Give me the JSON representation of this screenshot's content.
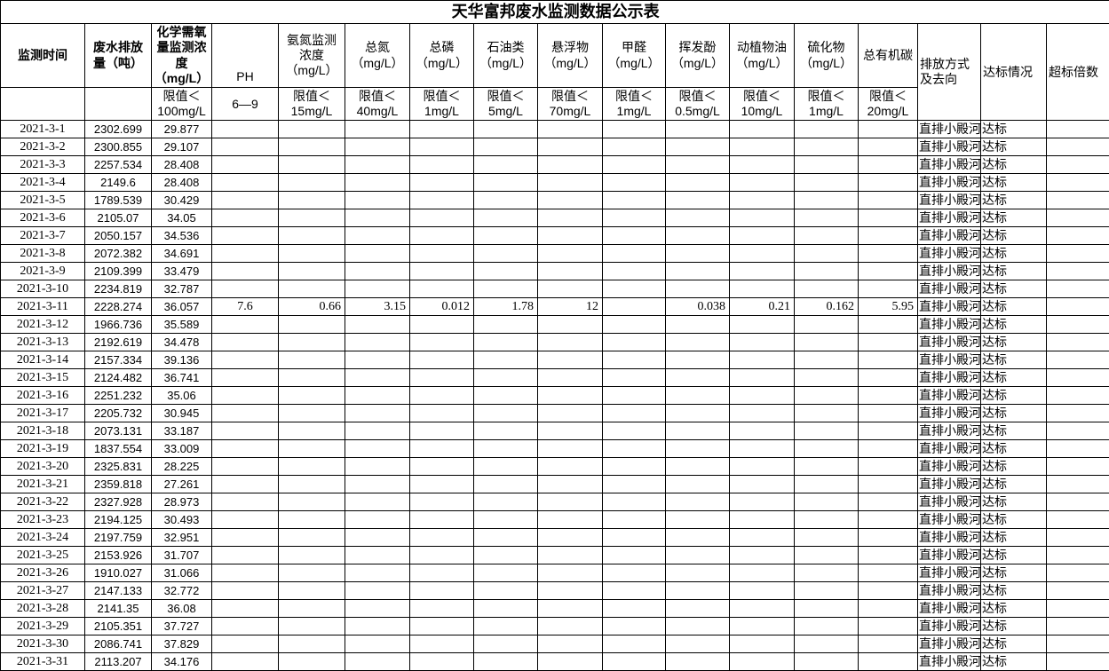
{
  "title": "天华富邦废水监测数据公示表",
  "table": {
    "columns": [
      {
        "label": "监测时间",
        "limit": "",
        "bold": true
      },
      {
        "label": "废水排放\n量（吨）",
        "limit": "",
        "bold": true
      },
      {
        "label": "化学需氧\n量监测浓\n度\n（mg/L）",
        "limit": "限值＜\n100mg/L",
        "bold": true
      },
      {
        "label": "PH",
        "limit": "6—9"
      },
      {
        "label": "氨氮监测\n浓度\n（mg/L）",
        "limit": "限值＜\n15mg/L"
      },
      {
        "label": "总氮\n（mg/L）",
        "limit": "限值＜\n40mg/L"
      },
      {
        "label": "总磷\n（mg/L）",
        "limit": "限值＜\n1mg/L"
      },
      {
        "label": "石油类\n（mg/L）",
        "limit": "限值＜\n5mg/L"
      },
      {
        "label": "悬浮物\n（mg/L）",
        "limit": "限值＜\n70mg/L"
      },
      {
        "label": "甲醛\n（mg/L）",
        "limit": "限值＜\n1mg/L"
      },
      {
        "label": "挥发酚\n（mg/L）",
        "limit": "限值＜\n0.5mg/L"
      },
      {
        "label": "动植物油\n（mg/L）",
        "limit": "限值＜\n10mg/L"
      },
      {
        "label": "硫化物\n（mg/L）",
        "limit": "限值＜\n1mg/L"
      },
      {
        "label": "总有机碳",
        "limit": "限值＜\n20mg/L"
      },
      {
        "label": "排放方式\n及去向",
        "merged": true
      },
      {
        "label": "达标情况",
        "merged": true
      },
      {
        "label": "超标倍数",
        "merged": true
      }
    ],
    "rows": [
      [
        "2021-3-1",
        "2302.699",
        "29.877",
        "",
        "",
        "",
        "",
        "",
        "",
        "",
        "",
        "",
        "",
        "",
        "直排小殿河",
        "达标",
        ""
      ],
      [
        "2021-3-2",
        "2300.855",
        "29.107",
        "",
        "",
        "",
        "",
        "",
        "",
        "",
        "",
        "",
        "",
        "",
        "直排小殿河",
        "达标",
        ""
      ],
      [
        "2021-3-3",
        "2257.534",
        "28.408",
        "",
        "",
        "",
        "",
        "",
        "",
        "",
        "",
        "",
        "",
        "",
        "直排小殿河",
        "达标",
        ""
      ],
      [
        "2021-3-4",
        "2149.6",
        "28.408",
        "",
        "",
        "",
        "",
        "",
        "",
        "",
        "",
        "",
        "",
        "",
        "直排小殿河",
        "达标",
        ""
      ],
      [
        "2021-3-5",
        "1789.539",
        "30.429",
        "",
        "",
        "",
        "",
        "",
        "",
        "",
        "",
        "",
        "",
        "",
        "直排小殿河",
        "达标",
        ""
      ],
      [
        "2021-3-6",
        "2105.07",
        "34.05",
        "",
        "",
        "",
        "",
        "",
        "",
        "",
        "",
        "",
        "",
        "",
        "直排小殿河",
        "达标",
        ""
      ],
      [
        "2021-3-7",
        "2050.157",
        "34.536",
        "",
        "",
        "",
        "",
        "",
        "",
        "",
        "",
        "",
        "",
        "",
        "直排小殿河",
        "达标",
        ""
      ],
      [
        "2021-3-8",
        "2072.382",
        "34.691",
        "",
        "",
        "",
        "",
        "",
        "",
        "",
        "",
        "",
        "",
        "",
        "直排小殿河",
        "达标",
        ""
      ],
      [
        "2021-3-9",
        "2109.399",
        "33.479",
        "",
        "",
        "",
        "",
        "",
        "",
        "",
        "",
        "",
        "",
        "",
        "直排小殿河",
        "达标",
        ""
      ],
      [
        "2021-3-10",
        "2234.819",
        "32.787",
        "",
        "",
        "",
        "",
        "",
        "",
        "",
        "",
        "",
        "",
        "",
        "直排小殿河",
        "达标",
        ""
      ],
      [
        "2021-3-11",
        "2228.274",
        "36.057",
        "7.6",
        "0.66",
        "3.15",
        "0.012",
        "1.78",
        "12",
        "",
        "0.038",
        "0.21",
        "0.162",
        "5.95",
        "直排小殿河",
        "达标",
        ""
      ],
      [
        "2021-3-12",
        "1966.736",
        "35.589",
        "",
        "",
        "",
        "",
        "",
        "",
        "",
        "",
        "",
        "",
        "",
        "直排小殿河",
        "达标",
        ""
      ],
      [
        "2021-3-13",
        "2192.619",
        "34.478",
        "",
        "",
        "",
        "",
        "",
        "",
        "",
        "",
        "",
        "",
        "",
        "直排小殿河",
        "达标",
        ""
      ],
      [
        "2021-3-14",
        "2157.334",
        "39.136",
        "",
        "",
        "",
        "",
        "",
        "",
        "",
        "",
        "",
        "",
        "",
        "直排小殿河",
        "达标",
        ""
      ],
      [
        "2021-3-15",
        "2124.482",
        "36.741",
        "",
        "",
        "",
        "",
        "",
        "",
        "",
        "",
        "",
        "",
        "",
        "直排小殿河",
        "达标",
        ""
      ],
      [
        "2021-3-16",
        "2251.232",
        "35.06",
        "",
        "",
        "",
        "",
        "",
        "",
        "",
        "",
        "",
        "",
        "",
        "直排小殿河",
        "达标",
        ""
      ],
      [
        "2021-3-17",
        "2205.732",
        "30.945",
        "",
        "",
        "",
        "",
        "",
        "",
        "",
        "",
        "",
        "",
        "",
        "直排小殿河",
        "达标",
        ""
      ],
      [
        "2021-3-18",
        "2073.131",
        "33.187",
        "",
        "",
        "",
        "",
        "",
        "",
        "",
        "",
        "",
        "",
        "",
        "直排小殿河",
        "达标",
        ""
      ],
      [
        "2021-3-19",
        "1837.554",
        "33.009",
        "",
        "",
        "",
        "",
        "",
        "",
        "",
        "",
        "",
        "",
        "",
        "直排小殿河",
        "达标",
        ""
      ],
      [
        "2021-3-20",
        "2325.831",
        "28.225",
        "",
        "",
        "",
        "",
        "",
        "",
        "",
        "",
        "",
        "",
        "",
        "直排小殿河",
        "达标",
        ""
      ],
      [
        "2021-3-21",
        "2359.818",
        "27.261",
        "",
        "",
        "",
        "",
        "",
        "",
        "",
        "",
        "",
        "",
        "",
        "直排小殿河",
        "达标",
        ""
      ],
      [
        "2021-3-22",
        "2327.928",
        "28.973",
        "",
        "",
        "",
        "",
        "",
        "",
        "",
        "",
        "",
        "",
        "",
        "直排小殿河",
        "达标",
        ""
      ],
      [
        "2021-3-23",
        "2194.125",
        "30.493",
        "",
        "",
        "",
        "",
        "",
        "",
        "",
        "",
        "",
        "",
        "",
        "直排小殿河",
        "达标",
        ""
      ],
      [
        "2021-3-24",
        "2197.759",
        "32.951",
        "",
        "",
        "",
        "",
        "",
        "",
        "",
        "",
        "",
        "",
        "",
        "直排小殿河",
        "达标",
        ""
      ],
      [
        "2021-3-25",
        "2153.926",
        "31.707",
        "",
        "",
        "",
        "",
        "",
        "",
        "",
        "",
        "",
        "",
        "",
        "直排小殿河",
        "达标",
        ""
      ],
      [
        "2021-3-26",
        "1910.027",
        "31.066",
        "",
        "",
        "",
        "",
        "",
        "",
        "",
        "",
        "",
        "",
        "",
        "直排小殿河",
        "达标",
        ""
      ],
      [
        "2021-3-27",
        "2147.133",
        "32.772",
        "",
        "",
        "",
        "",
        "",
        "",
        "",
        "",
        "",
        "",
        "",
        "直排小殿河",
        "达标",
        ""
      ],
      [
        "2021-3-28",
        "2141.35",
        "36.08",
        "",
        "",
        "",
        "",
        "",
        "",
        "",
        "",
        "",
        "",
        "",
        "直排小殿河",
        "达标",
        ""
      ],
      [
        "2021-3-29",
        "2105.351",
        "37.727",
        "",
        "",
        "",
        "",
        "",
        "",
        "",
        "",
        "",
        "",
        "",
        "直排小殿河",
        "达标",
        ""
      ],
      [
        "2021-3-30",
        "2086.741",
        "37.829",
        "",
        "",
        "",
        "",
        "",
        "",
        "",
        "",
        "",
        "",
        "",
        "直排小殿河",
        "达标",
        ""
      ],
      [
        "2021-3-31",
        "2113.207",
        "34.176",
        "",
        "",
        "",
        "",
        "",
        "",
        "",
        "",
        "",
        "",
        "",
        "直排小殿河",
        "达标",
        ""
      ]
    ]
  }
}
